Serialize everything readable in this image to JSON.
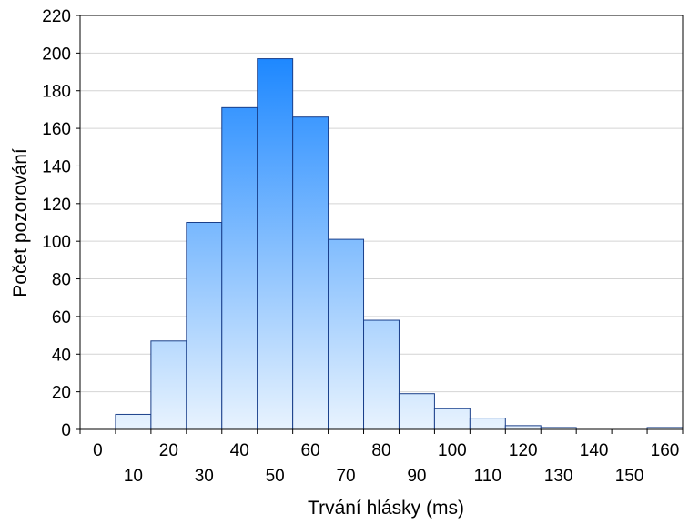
{
  "chart_data": {
    "type": "bar",
    "title": "",
    "xlabel": "Trvání hlásky (ms)",
    "ylabel": "Počet pozorování",
    "bin_width": 10,
    "x_ticks": [
      0,
      10,
      20,
      30,
      40,
      50,
      60,
      70,
      80,
      90,
      100,
      110,
      120,
      130,
      140,
      150,
      160
    ],
    "bins": [
      {
        "center": 0,
        "value": 0
      },
      {
        "center": 10,
        "value": 8
      },
      {
        "center": 20,
        "value": 47
      },
      {
        "center": 30,
        "value": 110
      },
      {
        "center": 40,
        "value": 171
      },
      {
        "center": 50,
        "value": 197
      },
      {
        "center": 60,
        "value": 166
      },
      {
        "center": 70,
        "value": 101
      },
      {
        "center": 80,
        "value": 58
      },
      {
        "center": 90,
        "value": 19
      },
      {
        "center": 100,
        "value": 11
      },
      {
        "center": 110,
        "value": 6
      },
      {
        "center": 120,
        "value": 2
      },
      {
        "center": 130,
        "value": 1
      },
      {
        "center": 140,
        "value": 0
      },
      {
        "center": 150,
        "value": 0
      },
      {
        "center": 160,
        "value": 1
      }
    ],
    "ylim": [
      0,
      220
    ],
    "y_ticks": [
      0,
      20,
      40,
      60,
      80,
      100,
      120,
      140,
      160,
      180,
      200,
      220
    ],
    "grid": true,
    "legend": "none",
    "colors": {
      "bar_top": "#1e88ff",
      "bar_bottom": "#e8f3fe",
      "bar_stroke": "#1a3f8a",
      "grid": "#d4d4d4",
      "axis": "#000000"
    }
  }
}
